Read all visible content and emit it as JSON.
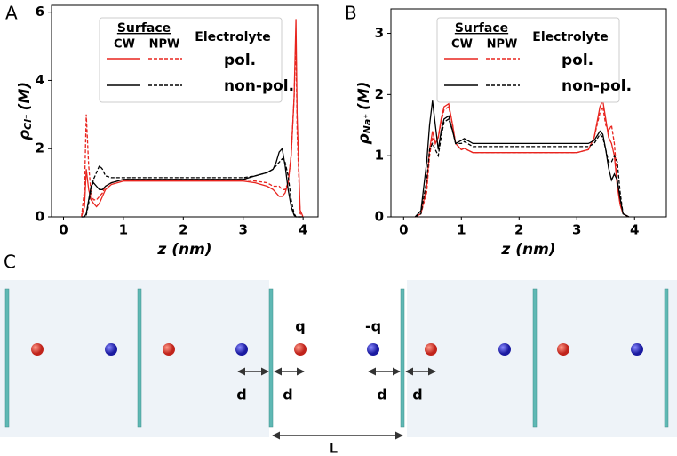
{
  "chart_data": [
    {
      "type": "line",
      "panel": "A",
      "xlabel": "z (nm)",
      "ylabel": {
        "symbol": "ρ",
        "subscript": "Cl⁻",
        "unit": "(M)"
      },
      "xlim": [
        -0.2,
        4.25
      ],
      "ylim": [
        0,
        6.2
      ],
      "xticks": [
        0,
        1,
        2,
        3,
        4
      ],
      "yticks": [
        0,
        2,
        4,
        6
      ],
      "legend": {
        "title": "Surface",
        "columns": [
          "CW",
          "NPW"
        ],
        "heading": "Electrolyte",
        "rows": [
          "pol.",
          "non-pol."
        ]
      },
      "x": [
        0.3,
        0.35,
        0.38,
        0.42,
        0.46,
        0.5,
        0.55,
        0.6,
        0.65,
        0.7,
        0.8,
        0.9,
        1.0,
        1.5,
        2.0,
        2.5,
        3.0,
        3.2,
        3.4,
        3.5,
        3.55,
        3.6,
        3.65,
        3.7,
        3.75,
        3.8,
        3.85,
        3.88,
        3.9,
        3.95,
        4.0
      ],
      "series": [
        {
          "color": "#e8251f",
          "dash": false,
          "values": [
            0,
            0.3,
            1.4,
            0.8,
            0.5,
            0.4,
            0.3,
            0.4,
            0.6,
            0.8,
            0.95,
            1.0,
            1.05,
            1.05,
            1.05,
            1.05,
            1.05,
            1.0,
            0.9,
            0.8,
            0.7,
            0.6,
            0.6,
            0.7,
            1.0,
            1.8,
            3.5,
            5.8,
            3.0,
            0.2,
            0
          ]
        },
        {
          "color": "#e8251f",
          "dash": true,
          "values": [
            0,
            0.8,
            3.0,
            1.5,
            0.7,
            0.5,
            0.5,
            0.6,
            0.7,
            0.9,
            1.0,
            1.05,
            1.1,
            1.1,
            1.1,
            1.1,
            1.1,
            1.05,
            1.0,
            0.9,
            0.9,
            0.9,
            0.8,
            0.8,
            1.0,
            1.8,
            3.5,
            5.2,
            2.5,
            0.1,
            0
          ]
        },
        {
          "color": "#000000",
          "dash": false,
          "values": [
            0,
            0,
            0.1,
            0.5,
            0.9,
            1.0,
            0.9,
            0.8,
            0.8,
            0.9,
            1.0,
            1.05,
            1.1,
            1.1,
            1.1,
            1.1,
            1.1,
            1.2,
            1.3,
            1.4,
            1.6,
            1.9,
            2.0,
            1.5,
            0.8,
            0.3,
            0.05,
            0,
            0,
            0,
            0
          ]
        },
        {
          "color": "#000000",
          "dash": true,
          "values": [
            0,
            0,
            0.05,
            0.4,
            0.8,
            1.1,
            1.3,
            1.5,
            1.4,
            1.2,
            1.15,
            1.15,
            1.15,
            1.15,
            1.15,
            1.15,
            1.15,
            1.2,
            1.3,
            1.4,
            1.5,
            1.6,
            1.7,
            1.6,
            1.2,
            0.5,
            0.1,
            0,
            0,
            0,
            0
          ]
        }
      ]
    },
    {
      "type": "line",
      "panel": "B",
      "xlabel": "z (nm)",
      "ylabel": {
        "symbol": "ρ",
        "subscript": "Na⁺",
        "unit": "(M)"
      },
      "xlim": [
        -0.22,
        4.55
      ],
      "ylim": [
        0,
        3.4
      ],
      "xticks": [
        0,
        1,
        2,
        3,
        4
      ],
      "yticks": [
        0,
        1,
        2,
        3
      ],
      "legend": {
        "title": "Surface",
        "columns": [
          "CW",
          "NPW"
        ],
        "heading": "Electrolyte",
        "rows": [
          "pol.",
          "non-pol."
        ]
      },
      "x": [
        0.2,
        0.3,
        0.4,
        0.45,
        0.5,
        0.55,
        0.6,
        0.65,
        0.7,
        0.78,
        0.85,
        0.9,
        1.0,
        1.05,
        1.2,
        1.5,
        2.0,
        2.5,
        3.0,
        3.2,
        3.3,
        3.4,
        3.45,
        3.5,
        3.55,
        3.6,
        3.65,
        3.7,
        3.75,
        3.8,
        3.9
      ],
      "series": [
        {
          "color": "#e8251f",
          "dash": false,
          "values": [
            0,
            0.05,
            0.5,
            1.1,
            1.4,
            1.2,
            1.3,
            1.6,
            1.8,
            1.85,
            1.5,
            1.2,
            1.1,
            1.12,
            1.05,
            1.05,
            1.05,
            1.05,
            1.05,
            1.1,
            1.3,
            1.8,
            1.9,
            1.6,
            1.3,
            1.2,
            1.0,
            0.5,
            0.2,
            0.05,
            0
          ]
        },
        {
          "color": "#e8251f",
          "dash": true,
          "values": [
            0,
            0.05,
            0.4,
            1.0,
            1.3,
            1.2,
            1.3,
            1.55,
            1.75,
            1.8,
            1.5,
            1.2,
            1.1,
            1.12,
            1.05,
            1.05,
            1.05,
            1.05,
            1.05,
            1.1,
            1.3,
            1.7,
            1.8,
            1.5,
            1.4,
            1.5,
            1.2,
            0.6,
            0.2,
            0.05,
            0
          ]
        },
        {
          "color": "#000000",
          "dash": false,
          "values": [
            0,
            0.1,
            0.9,
            1.5,
            1.9,
            1.5,
            1.1,
            1.4,
            1.6,
            1.65,
            1.4,
            1.2,
            1.25,
            1.28,
            1.2,
            1.2,
            1.2,
            1.2,
            1.2,
            1.2,
            1.25,
            1.4,
            1.35,
            1.1,
            0.8,
            0.6,
            0.7,
            0.6,
            0.3,
            0.05,
            0
          ]
        },
        {
          "color": "#000000",
          "dash": true,
          "values": [
            0,
            0.05,
            0.6,
            1.1,
            1.2,
            1.1,
            1.0,
            1.3,
            1.55,
            1.6,
            1.4,
            1.2,
            1.2,
            1.23,
            1.15,
            1.15,
            1.15,
            1.15,
            1.15,
            1.15,
            1.2,
            1.35,
            1.3,
            1.1,
            0.9,
            0.9,
            1.0,
            0.9,
            0.4,
            0.05,
            0
          ]
        }
      ]
    }
  ],
  "diagram": {
    "panel": "C",
    "labels": [
      "q",
      "-q",
      "d",
      "d",
      "d",
      "d",
      "L"
    ]
  }
}
